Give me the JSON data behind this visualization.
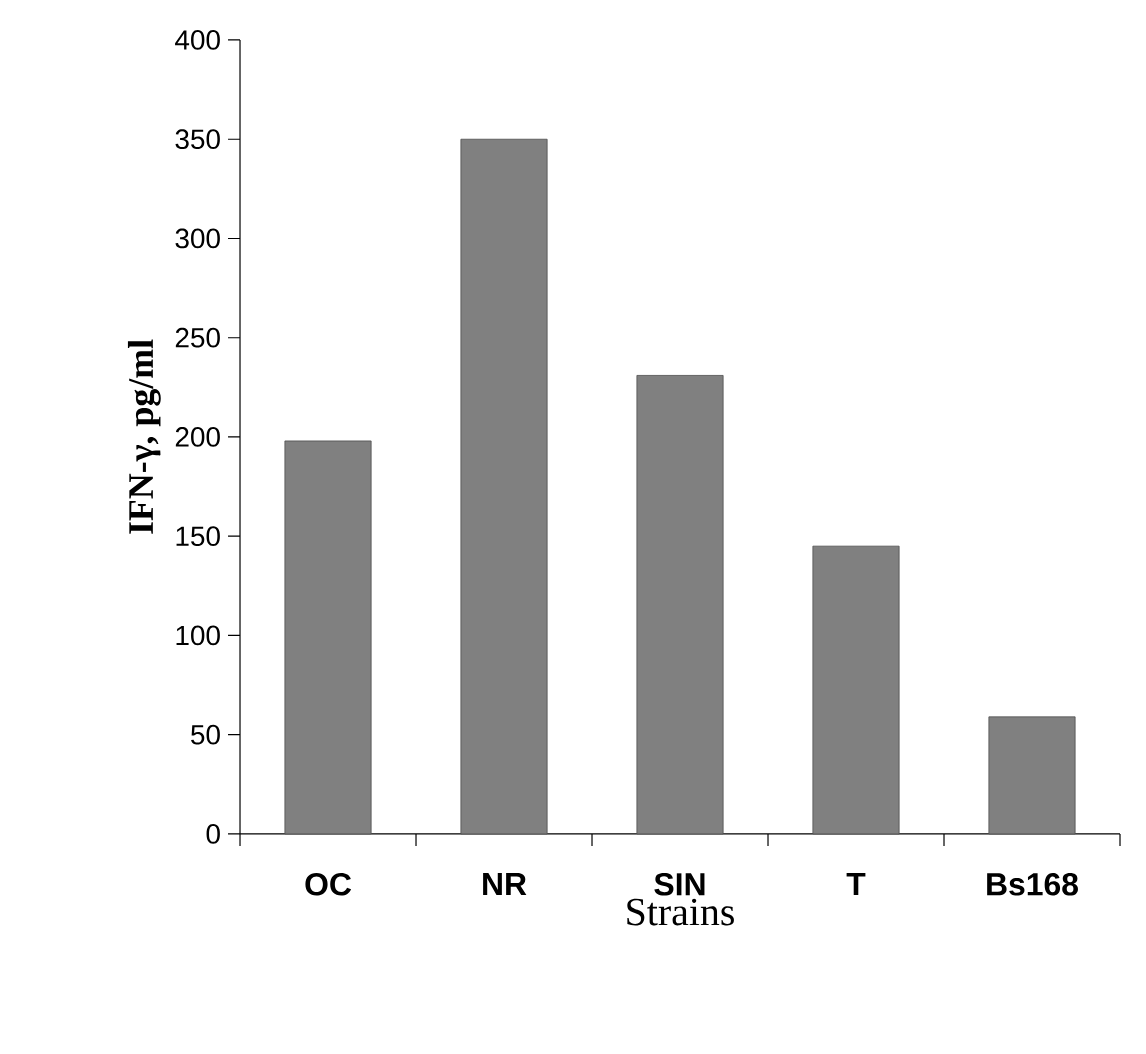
{
  "chart_data": {
    "type": "bar",
    "xlabel": "Strains",
    "ylabel": "IFN-γ, pg/ml",
    "categories": [
      "OC",
      "NR",
      "SIN",
      "T",
      "Bs168"
    ],
    "values": [
      198,
      350,
      231,
      145,
      59
    ],
    "color": "#808080",
    "ylim": [
      0,
      400
    ],
    "yticks": [
      0,
      50,
      100,
      150,
      200,
      250,
      300,
      350,
      400
    ]
  }
}
